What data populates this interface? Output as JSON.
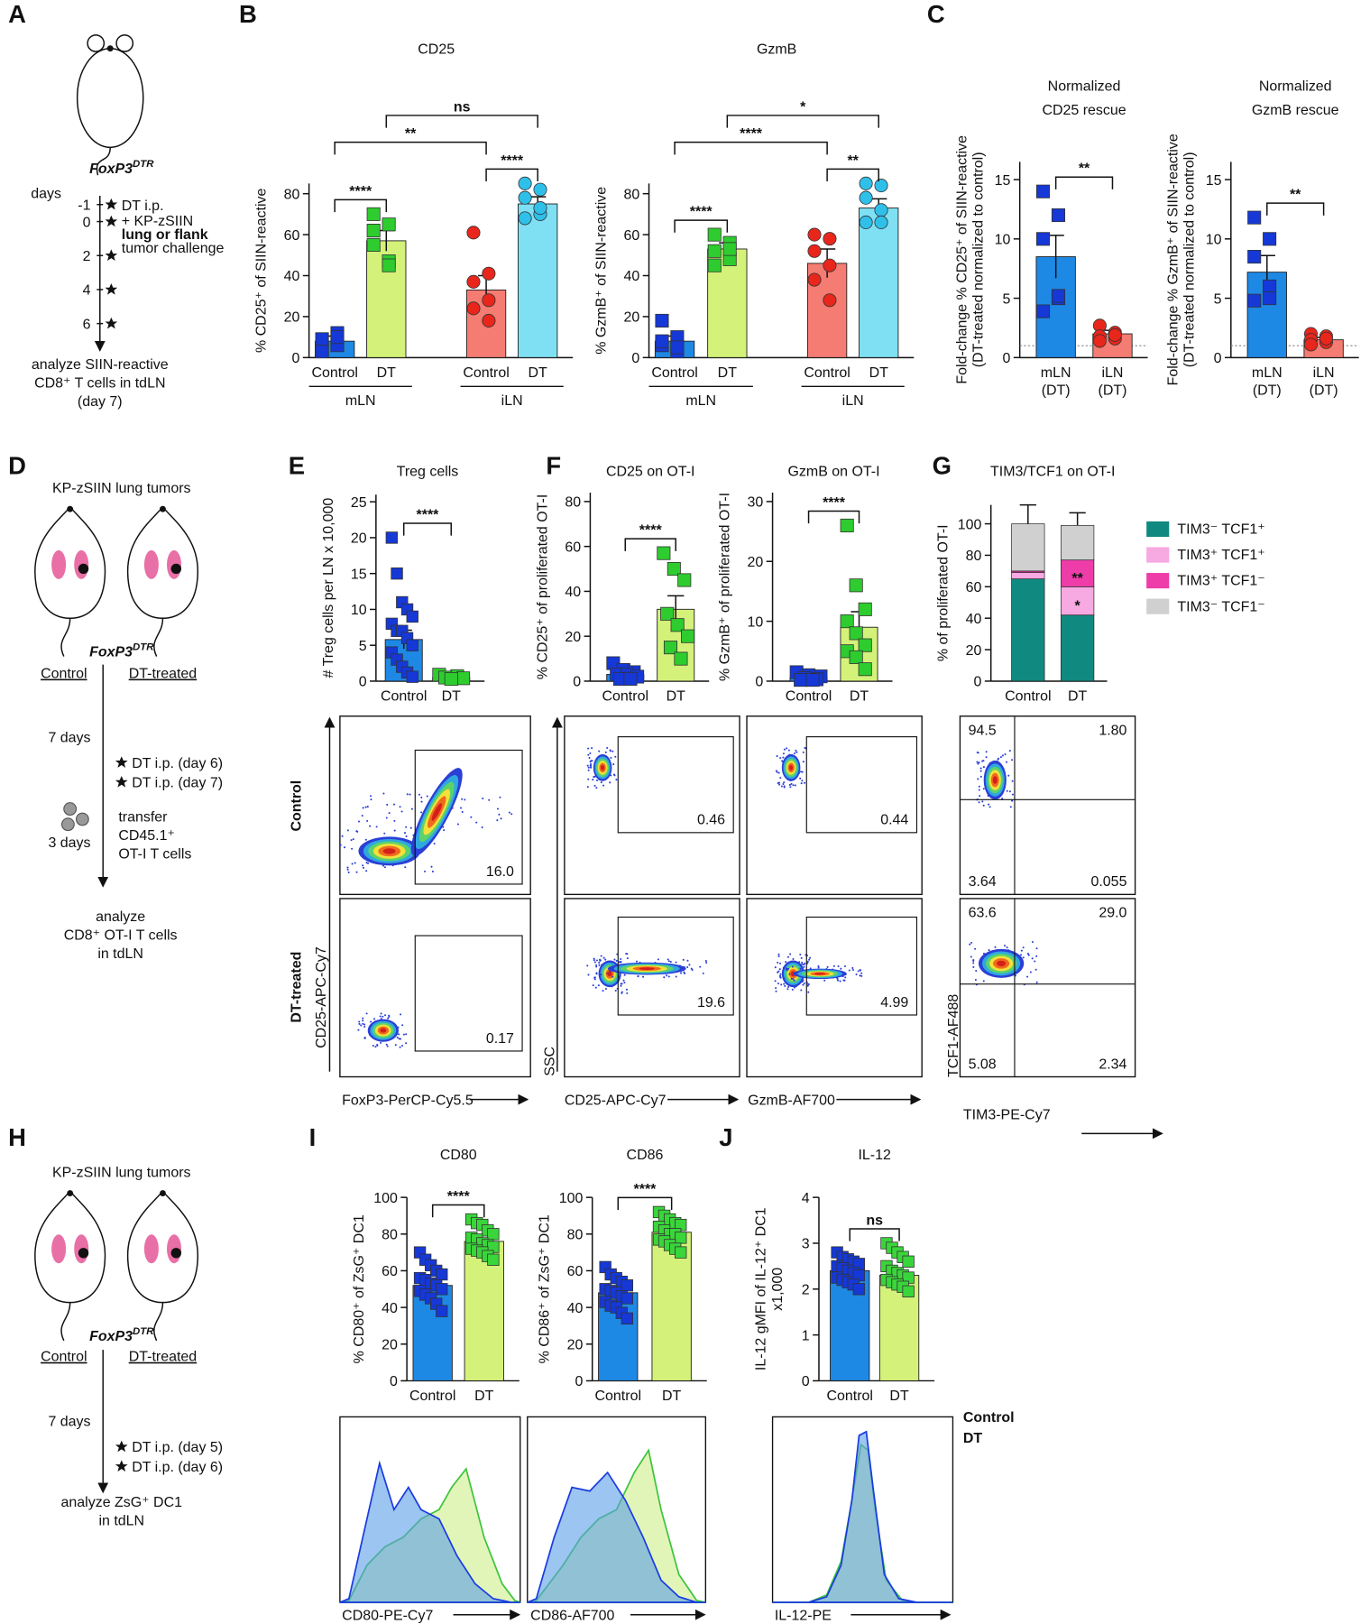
{
  "panel_labels": [
    "A",
    "B",
    "C",
    "D",
    "E",
    "F",
    "G",
    "H",
    "I",
    "J"
  ],
  "schematic_A": {
    "strain": "FoxP3",
    "strain_superscript": "DTR",
    "time_label": "days",
    "days": [
      -1,
      0,
      2,
      4,
      6
    ],
    "events": [
      "DT i.p.",
      "+ KP-zSIIN",
      "lung or flank",
      "tumor challenge"
    ],
    "readout": [
      "analyze SIIN-reactive",
      "CD8⁺ T cells in tdLN",
      "(day 7)"
    ]
  },
  "schematic_D": {
    "title": "KP-zSIIN lung tumors",
    "strain": "FoxP3",
    "strain_superscript": "DTR",
    "arms": [
      "Control",
      "DT-treated"
    ],
    "intervals": [
      "7 days",
      "3 days"
    ],
    "events": [
      "DT i.p. (day 6)",
      "DT i.p. (day 7)"
    ],
    "transfer": [
      "transfer",
      "CD45.1⁺",
      "OT-I T cells"
    ],
    "readout": [
      "analyze",
      "CD8⁺ OT-I T cells",
      "in tdLN"
    ]
  },
  "schematic_H": {
    "title": "KP-zSIIN lung tumors",
    "strain": "FoxP3",
    "strain_superscript": "DTR",
    "arms": [
      "Control",
      "DT-treated"
    ],
    "intervals": [
      "7 days"
    ],
    "events": [
      "DT i.p. (day 5)",
      "DT i.p. (day 6)"
    ],
    "readout": [
      "analyze ZsG⁺ DC1",
      "in tdLN"
    ]
  },
  "chart_data": [
    {
      "type": "bar",
      "title": "CD25",
      "ylabel": [
        "% CD25⁺ of SIIN-reactive"
      ],
      "categories": [
        "Control",
        "DT",
        "Control",
        "DT"
      ],
      "groups": [
        {
          "label": "mLN",
          "span": [
            0,
            1
          ]
        },
        {
          "label": "iLN",
          "span": [
            2,
            3
          ]
        }
      ],
      "values": [
        8,
        57,
        33,
        75
      ],
      "errors": [
        2.5,
        5,
        7,
        3.5
      ],
      "points": [
        [
          4,
          6,
          9,
          12,
          3,
          10
        ],
        [
          70,
          65,
          55,
          47,
          62,
          45
        ],
        [
          61,
          41,
          37,
          28,
          24,
          18
        ],
        [
          85,
          82,
          78,
          70,
          68,
          73
        ]
      ],
      "colors": [
        "#1e88e5",
        "#d4f27a",
        "#f47c72",
        "#7fe0f3"
      ],
      "point_colors": [
        "#1538d6",
        "#2ecc2e",
        "#e8261c",
        "#2fc0ea"
      ],
      "point_shapes": [
        "square",
        "square",
        "circle",
        "circle"
      ],
      "ylim": [
        0,
        85
      ],
      "yticks": [
        0,
        20,
        40,
        60,
        80
      ],
      "significance": [
        {
          "label": "****",
          "pair": [
            0,
            1
          ]
        },
        {
          "label": "****",
          "pair": [
            2,
            3
          ]
        },
        {
          "label": "**",
          "pair": [
            0,
            2
          ]
        },
        {
          "label": "ns",
          "pair": [
            1,
            3
          ]
        }
      ]
    },
    {
      "type": "bar",
      "title": "GzmB",
      "ylabel": [
        "% GzmB⁺ of SIIN-reactive"
      ],
      "categories": [
        "Control",
        "DT",
        "Control",
        "DT"
      ],
      "groups": [
        {
          "label": "mLN",
          "span": [
            0,
            1
          ]
        },
        {
          "label": "iLN",
          "span": [
            2,
            3
          ]
        }
      ],
      "values": [
        8,
        53,
        46,
        73
      ],
      "errors": [
        2.5,
        3,
        7,
        4.5
      ],
      "points": [
        [
          18,
          10,
          6,
          3,
          8,
          5
        ],
        [
          60,
          56,
          52,
          48,
          45,
          53
        ],
        [
          60,
          58,
          52,
          45,
          38,
          28
        ],
        [
          85,
          84,
          78,
          72,
          66,
          66
        ]
      ],
      "colors": [
        "#1e88e5",
        "#d4f27a",
        "#f47c72",
        "#7fe0f3"
      ],
      "point_colors": [
        "#1538d6",
        "#2ecc2e",
        "#e8261c",
        "#2fc0ea"
      ],
      "point_shapes": [
        "square",
        "square",
        "circle",
        "circle"
      ],
      "ylim": [
        0,
        85
      ],
      "yticks": [
        0,
        20,
        40,
        60,
        80
      ],
      "significance": [
        {
          "label": "****",
          "pair": [
            0,
            1
          ]
        },
        {
          "label": "**",
          "pair": [
            2,
            3
          ]
        },
        {
          "label": "****",
          "pair": [
            0,
            2
          ]
        },
        {
          "label": "*",
          "pair": [
            1,
            3
          ]
        }
      ]
    },
    {
      "type": "bar",
      "title": [
        "Normalized",
        "CD25 rescue"
      ],
      "ylabel": [
        "Fold-change % CD25⁺ of SIIN-reactive",
        "(DT-treated normalized to control)"
      ],
      "categories": [
        "mLN",
        "iLN"
      ],
      "category_sublabels": [
        "(DT)",
        "(DT)"
      ],
      "values": [
        8.5,
        2
      ],
      "errors": [
        1.8,
        0.3
      ],
      "points": [
        [
          14,
          12,
          10,
          5,
          3.9,
          5.2
        ],
        [
          2.7,
          2.1,
          1.8,
          1.6,
          1.4,
          1.9
        ]
      ],
      "colors": [
        "#1e88e5",
        "#f47c72"
      ],
      "point_colors": [
        "#1538d6",
        "#e8261c"
      ],
      "point_shapes": [
        "square",
        "circle"
      ],
      "ylim": [
        0,
        16.5
      ],
      "yticks": [
        0,
        5,
        10,
        15
      ],
      "reference_line": 1,
      "significance": [
        {
          "label": "**",
          "pair": [
            0,
            1
          ]
        }
      ]
    },
    {
      "type": "bar",
      "title": [
        "Normalized",
        "GzmB rescue"
      ],
      "ylabel": [
        "Fold-change % GzmB⁺ of SIIN-reactive",
        "(DT-treated normalized to control)"
      ],
      "categories": [
        "mLN",
        "iLN"
      ],
      "category_sublabels": [
        "(DT)",
        "(DT)"
      ],
      "values": [
        7.2,
        1.5
      ],
      "errors": [
        1.4,
        0.2
      ],
      "points": [
        [
          11.8,
          10,
          8.5,
          6,
          4.8,
          5
        ],
        [
          2,
          1.8,
          1.5,
          1.3,
          1.1,
          1.6
        ]
      ],
      "colors": [
        "#1e88e5",
        "#f47c72"
      ],
      "point_colors": [
        "#1538d6",
        "#e8261c"
      ],
      "point_shapes": [
        "square",
        "circle"
      ],
      "ylim": [
        0,
        16.5
      ],
      "yticks": [
        0,
        5,
        10,
        15
      ],
      "reference_line": 1,
      "significance": [
        {
          "label": "**",
          "pair": [
            0,
            1
          ]
        }
      ]
    },
    {
      "type": "bar",
      "title": "Treg cells",
      "ylabel": [
        "# Treg cells per LN x 10,000"
      ],
      "categories": [
        "Control",
        "DT"
      ],
      "values": [
        5.8,
        0.5
      ],
      "errors": [
        1.3,
        0.1
      ],
      "points": [
        [
          20,
          15,
          11,
          10,
          9,
          8,
          7,
          7,
          6,
          5,
          4,
          3,
          2,
          1.2,
          0.6
        ],
        [
          0.9,
          0.7,
          0.5,
          0.4,
          0.3
        ]
      ],
      "colors": [
        "#1e88e5",
        "#d4f27a"
      ],
      "point_colors": [
        "#1538d6",
        "#2ecc2e"
      ],
      "point_shapes": [
        "square",
        "square"
      ],
      "ylim": [
        0,
        26
      ],
      "yticks": [
        0,
        5,
        10,
        15,
        20,
        25
      ],
      "significance": [
        {
          "label": "****",
          "pair": [
            0,
            1
          ]
        }
      ]
    },
    {
      "type": "bar",
      "title": "CD25 on OT-I",
      "ylabel": [
        "% CD25⁺ of proliferated OT-I"
      ],
      "categories": [
        "Control",
        "DT"
      ],
      "values": [
        3,
        32
      ],
      "errors": [
        1,
        6
      ],
      "points": [
        [
          8,
          5,
          4,
          3,
          3,
          2,
          1,
          1
        ],
        [
          57,
          50,
          45,
          30,
          25,
          20,
          15,
          10
        ]
      ],
      "colors": [
        "#1e88e5",
        "#d4f27a"
      ],
      "point_colors": [
        "#1538d6",
        "#2ecc2e"
      ],
      "point_shapes": [
        "square",
        "square"
      ],
      "ylim": [
        0,
        84
      ],
      "yticks": [
        0,
        20,
        40,
        60,
        80
      ],
      "significance": [
        {
          "label": "****",
          "pair": [
            0,
            1
          ]
        }
      ]
    },
    {
      "type": "bar",
      "title": "GzmB on OT-I",
      "ylabel": [
        "% GzmB⁺ of proliferated OT-I"
      ],
      "categories": [
        "Control",
        "DT"
      ],
      "values": [
        0.6,
        9
      ],
      "errors": [
        0.2,
        2.6
      ],
      "points": [
        [
          1.5,
          1,
          0.8,
          0.5,
          0.3,
          0.2,
          0.2
        ],
        [
          26,
          16,
          12,
          10,
          8,
          6,
          5,
          4,
          2
        ]
      ],
      "colors": [
        "#1e88e5",
        "#d4f27a"
      ],
      "point_colors": [
        "#1538d6",
        "#2ecc2e"
      ],
      "point_shapes": [
        "square",
        "square"
      ],
      "ylim": [
        0,
        31.5
      ],
      "yticks": [
        0,
        10,
        20,
        30
      ],
      "significance": [
        {
          "label": "****",
          "pair": [
            0,
            1
          ]
        }
      ]
    },
    {
      "type": "stacked_bar",
      "title": "TIM3/TCF1 on OT-I",
      "ylabel": [
        "% of proliferated OT-I"
      ],
      "categories": [
        "Control",
        "DT"
      ],
      "series": [
        {
          "name": "TIM3⁻ TCF1⁺",
          "color": "#108a80",
          "values": [
            65,
            42
          ]
        },
        {
          "name": "TIM3⁺ TCF1⁺",
          "color": "#f7a9e2",
          "values": [
            4,
            18
          ]
        },
        {
          "name": "TIM3⁺ TCF1⁻",
          "color": "#ee3ca9",
          "values": [
            1,
            17
          ],
          "errors": [
            2,
            7
          ]
        },
        {
          "name": "TIM3⁻ TCF1⁻",
          "color": "#d0d0d0",
          "values": [
            30,
            22
          ],
          "errors": [
            12,
            8
          ]
        }
      ],
      "annotations": [
        {
          "label": "**",
          "series": 2,
          "category": 1
        },
        {
          "label": "*",
          "series": 1,
          "category": 1
        }
      ],
      "ylim": [
        0,
        112
      ],
      "yticks": [
        0,
        20,
        40,
        60,
        80,
        100
      ]
    },
    {
      "type": "bar",
      "title": "CD80",
      "ylabel": [
        "% CD80⁺ of ZsG⁺ DC1"
      ],
      "categories": [
        "Control",
        "DT"
      ],
      "values": [
        52,
        76
      ],
      "errors": [
        2,
        1.8
      ],
      "points": [
        [
          70,
          66,
          63,
          60,
          58,
          56,
          55,
          53,
          52,
          50,
          49,
          47,
          45,
          42,
          38
        ],
        [
          88,
          86,
          85,
          82,
          80,
          78,
          77,
          75,
          74,
          73,
          72,
          71,
          70,
          68,
          66
        ]
      ],
      "colors": [
        "#1e88e5",
        "#d4f27a"
      ],
      "point_colors": [
        "#1538d6",
        "#3ad53a"
      ],
      "point_shapes": [
        "square",
        "square"
      ],
      "ylim": [
        0,
        100
      ],
      "yticks": [
        0,
        20,
        40,
        60,
        80,
        100
      ],
      "significance": [
        {
          "label": "****",
          "pair": [
            0,
            1
          ]
        }
      ]
    },
    {
      "type": "bar",
      "title": "CD86",
      "ylabel": [
        "% CD86⁺ of ZsG⁺ DC1"
      ],
      "categories": [
        "Control",
        "DT"
      ],
      "values": [
        48,
        81
      ],
      "errors": [
        2.2,
        1.8
      ],
      "points": [
        [
          62,
          58,
          56,
          54,
          52,
          50,
          49,
          48,
          46,
          45,
          43,
          41,
          40,
          37,
          34
        ],
        [
          92,
          90,
          88,
          86,
          85,
          84,
          82,
          80,
          80,
          78,
          77,
          76,
          74,
          72,
          70
        ]
      ],
      "colors": [
        "#1e88e5",
        "#d4f27a"
      ],
      "point_colors": [
        "#1538d6",
        "#3ad53a"
      ],
      "point_shapes": [
        "square",
        "square"
      ],
      "ylim": [
        0,
        100
      ],
      "yticks": [
        0,
        20,
        40,
        60,
        80,
        100
      ],
      "significance": [
        {
          "label": "****",
          "pair": [
            0,
            1
          ]
        }
      ]
    },
    {
      "type": "bar",
      "title": "IL-12",
      "ylabel": [
        "IL-12 gMFI of IL-12⁺ DC1",
        "x1,000"
      ],
      "categories": [
        "Control",
        "DT"
      ],
      "values": [
        2.4,
        2.3
      ],
      "errors": [
        0.06,
        0.07
      ],
      "points": [
        [
          2.8,
          2.7,
          2.65,
          2.6,
          2.55,
          2.5,
          2.45,
          2.4,
          2.35,
          2.3,
          2.25,
          2.2,
          2.15,
          2.1,
          2.0
        ],
        [
          3.0,
          2.9,
          2.8,
          2.7,
          2.6,
          2.5,
          2.4,
          2.35,
          2.3,
          2.25,
          2.2,
          2.15,
          2.1,
          2.05,
          1.95
        ]
      ],
      "colors": [
        "#1e88e5",
        "#d4f27a"
      ],
      "point_colors": [
        "#1538d6",
        "#3ad53a"
      ],
      "point_shapes": [
        "square",
        "square"
      ],
      "ylim": [
        0,
        4
      ],
      "yticks": [
        0,
        1,
        2,
        3,
        4
      ],
      "significance": [
        {
          "label": "ns",
          "pair": [
            0,
            1
          ]
        }
      ]
    }
  ],
  "flow_plots": {
    "row_labels": [
      "Control",
      "DT-treated"
    ],
    "plots": [
      {
        "y_label": "CD25-APC-Cy7",
        "x_label": "FoxP3-PerCP-Cy5.5",
        "gates": [
          "16.0",
          "0.17"
        ]
      },
      {
        "y_label": "SSC",
        "x_label": "CD25-APC-Cy7",
        "gates": [
          "0.46",
          "19.6"
        ]
      },
      {
        "x_label": "GzmB-AF700",
        "gates": [
          "0.44",
          "4.99"
        ]
      },
      {
        "y_label": "TCF1-AF488",
        "x_label": "TIM3-PE-Cy7",
        "quadrants": [
          [
            "94.5",
            "1.80",
            "3.64",
            "0.055"
          ],
          [
            "63.6",
            "29.0",
            "5.08",
            "2.34"
          ]
        ]
      }
    ]
  },
  "histograms": {
    "x_labels": [
      "CD80-PE-Cy7",
      "CD86-AF700",
      "IL-12-PE"
    ],
    "legend": [
      {
        "name": "Control",
        "color": "#1a3be0"
      },
      {
        "name": "DT",
        "color": "#3cc43c"
      }
    ]
  }
}
